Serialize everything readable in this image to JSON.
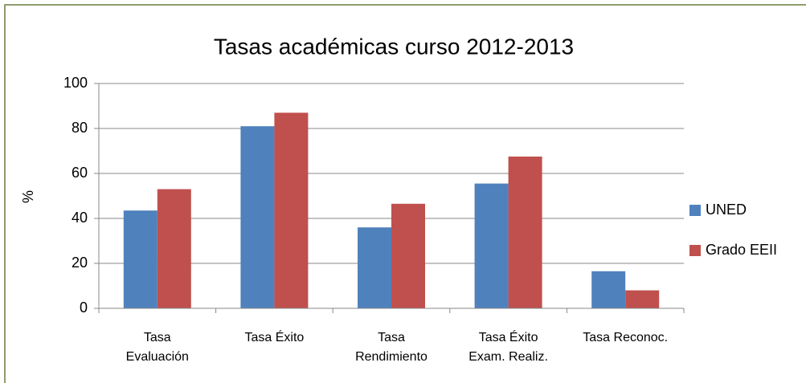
{
  "chart_data": {
    "type": "bar",
    "title": "Tasas académicas curso 2012-2013",
    "y_label": "%",
    "categories": [
      "Tasa\nEvaluación",
      "Tasa Éxito",
      "Tasa\nRendimiento",
      "Tasa Éxito\nExam. Realiz.",
      "Tasa Reconoc."
    ],
    "series": [
      {
        "name": "UNED",
        "color": "#4f81bd",
        "values": [
          43.5,
          81,
          36,
          55.5,
          16.5
        ]
      },
      {
        "name": "Grado EEII",
        "color": "#c0504d",
        "values": [
          53,
          87,
          46.5,
          67.5,
          8
        ]
      }
    ],
    "ylim": [
      0,
      100
    ],
    "yticks": [
      0,
      20,
      40,
      60,
      80,
      100
    ],
    "grid": true,
    "legend": "right"
  }
}
